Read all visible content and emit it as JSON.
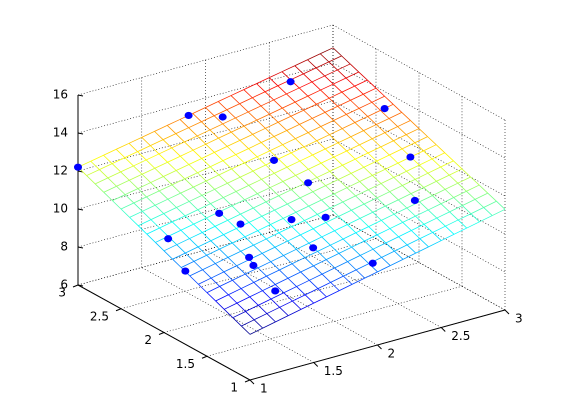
{
  "chart_data": {
    "type": "mesh-scatter3d",
    "xlim": [
      1,
      3
    ],
    "ylim": [
      1,
      3
    ],
    "zlim": [
      6,
      16
    ],
    "xticks": [
      1,
      1.5,
      2,
      2.5,
      3
    ],
    "yticks": [
      1,
      1.5,
      2,
      2.5,
      3
    ],
    "zticks": [
      6,
      8,
      10,
      12,
      14,
      16
    ],
    "grid": true,
    "colormap": "jet",
    "surface": {
      "x": [
        1,
        3
      ],
      "y": [
        1,
        3
      ],
      "z": [
        [
          8.4,
          11.3
        ],
        [
          12.2,
          14.8
        ]
      ],
      "mesh_divisions": 20
    },
    "scatter": {
      "color": "#0000ff",
      "x": [
        1,
        2.6,
        1.8,
        2.0,
        3,
        3,
        2.9,
        2.2,
        2.4,
        2.2,
        2.0,
        1.5,
        1.6,
        1.1,
        1.1,
        1.6,
        1.6,
        1.9,
        2.3,
        1.4
      ],
      "y": [
        3,
        2.9,
        2.9,
        2.8,
        2.4,
        2.1,
        1.9,
        2.5,
        2.4,
        1.9,
        2.0,
        2.1,
        2.0,
        2.1,
        1.9,
        1.9,
        1.85,
        1.6,
        1.5,
        1.3
      ],
      "z": [
        12.2,
        14.0,
        13.7,
        13.5,
        13.1,
        11.3,
        9.7,
        11.6,
        10.3,
        10.1,
        10.1,
        11.1,
        10.6,
        10.5,
        9.3,
        9.1,
        8.8,
        9.8,
        8.5,
        9.2
      ]
    }
  }
}
